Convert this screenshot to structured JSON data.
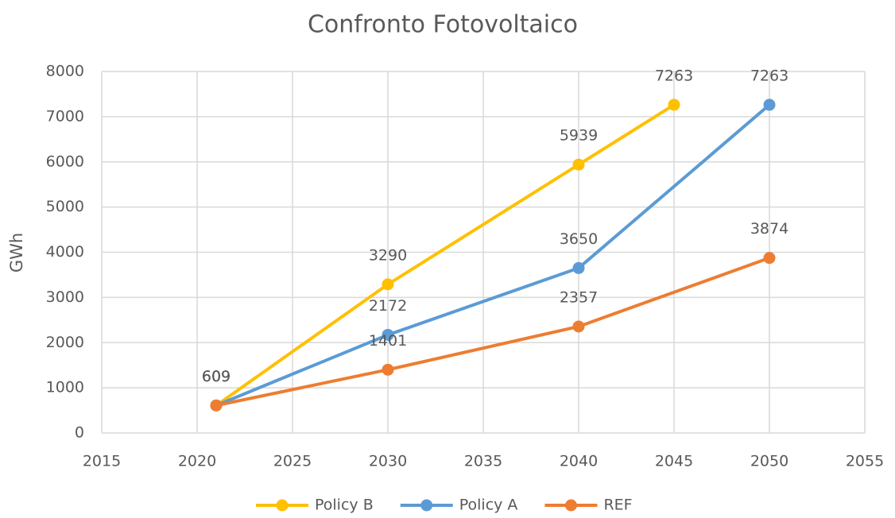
{
  "chart_data": {
    "type": "line",
    "title": "Confronto Fotovoltaico",
    "y_label": "GWh",
    "xlim": [
      2015,
      2055
    ],
    "xticks": [
      2015,
      2020,
      2025,
      2030,
      2035,
      2040,
      2045,
      2050,
      2055
    ],
    "ylim": [
      0,
      8000
    ],
    "yticks": [
      0,
      1000,
      2000,
      3000,
      4000,
      5000,
      6000,
      7000,
      8000
    ],
    "grid": true,
    "legend": "bottom",
    "series": [
      {
        "name": "Policy B",
        "color": "#FFC000",
        "x": [
          2021,
          2030,
          2040,
          2045
        ],
        "values": [
          609,
          3290,
          5939,
          7263
        ]
      },
      {
        "name": "Policy A",
        "color": "#5B9BD5",
        "x": [
          2021,
          2030,
          2040,
          2050
        ],
        "values": [
          609,
          2172,
          3650,
          7263
        ]
      },
      {
        "name": "REF",
        "color": "#ED7D31",
        "x": [
          2021,
          2030,
          2040,
          2050
        ],
        "values": [
          609,
          1401,
          2357,
          3874
        ]
      }
    ]
  }
}
